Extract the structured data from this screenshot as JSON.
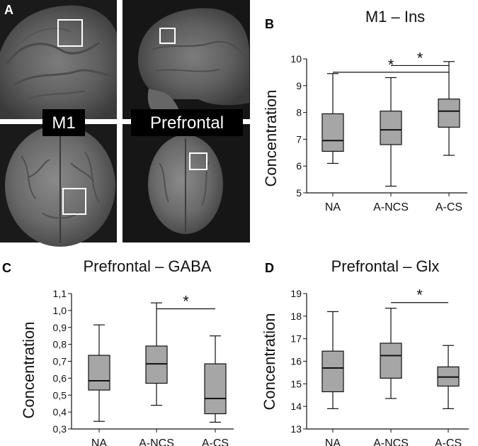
{
  "panel_a": {
    "letter": "A",
    "m1_label": "M1",
    "prefrontal_label": "Prefrontal"
  },
  "chart_data": [
    {
      "type": "boxplot",
      "panel_letter": "B",
      "title": "M1 – Ins",
      "xlabel": "",
      "ylabel": "Concentration",
      "categories": [
        "NA",
        "A-NCS",
        "A-CS"
      ],
      "ylim": [
        5,
        10
      ],
      "yticks": [
        "5",
        "6",
        "7",
        "8",
        "9",
        "10"
      ],
      "yticks_values": [
        5,
        6,
        7,
        8,
        9,
        10
      ],
      "boxes": [
        {
          "name": "NA",
          "whisker_low": 6.1,
          "q1": 6.55,
          "median": 6.95,
          "q3": 7.95,
          "whisker_high": 9.45
        },
        {
          "name": "A-NCS",
          "whisker_low": 5.25,
          "q1": 6.8,
          "median": 7.35,
          "q3": 8.05,
          "whisker_high": 9.3
        },
        {
          "name": "A-CS",
          "whisker_low": 6.4,
          "q1": 7.45,
          "median": 8.05,
          "q3": 8.5,
          "whisker_high": 9.9
        }
      ],
      "box_color": "#a6a6a6",
      "significance": [
        {
          "from": "A-NCS",
          "to": "A-CS",
          "label": "*",
          "level": 9.75
        },
        {
          "from": "NA",
          "to": "A-CS",
          "label": "*",
          "level": 9.5
        }
      ]
    },
    {
      "type": "boxplot",
      "panel_letter": "C",
      "title": "Prefrontal – GABA",
      "xlabel": "",
      "ylabel": "Concentration",
      "categories": [
        "NA",
        "A-NCS",
        "A-CS"
      ],
      "ylim": [
        0.3,
        1.1
      ],
      "yticks": [
        "0,3",
        "0,4",
        "0,5",
        "0,6",
        "0,7",
        "0,8",
        "0,9",
        "1,0",
        "1,1"
      ],
      "yticks_values": [
        0.3,
        0.4,
        0.5,
        0.6,
        0.7,
        0.8,
        0.9,
        1.0,
        1.1
      ],
      "boxes": [
        {
          "name": "NA",
          "whisker_low": 0.345,
          "q1": 0.53,
          "median": 0.585,
          "q3": 0.735,
          "whisker_high": 0.915
        },
        {
          "name": "A-NCS",
          "whisker_low": 0.44,
          "q1": 0.57,
          "median": 0.685,
          "q3": 0.79,
          "whisker_high": 1.045
        },
        {
          "name": "A-CS",
          "whisker_low": 0.34,
          "q1": 0.39,
          "median": 0.48,
          "q3": 0.685,
          "whisker_high": 0.85
        }
      ],
      "box_color": "#a6a6a6",
      "significance": [
        {
          "from": "A-NCS",
          "to": "A-CS",
          "label": "*",
          "level": 1.01
        }
      ]
    },
    {
      "type": "boxplot",
      "panel_letter": "D",
      "title": "Prefrontal – Glx",
      "xlabel": "",
      "ylabel": "Concentration",
      "categories": [
        "NA",
        "A-NCS",
        "A-CS"
      ],
      "ylim": [
        13,
        19
      ],
      "yticks": [
        "13",
        "14",
        "15",
        "16",
        "17",
        "18",
        "19"
      ],
      "yticks_values": [
        13,
        14,
        15,
        16,
        17,
        18,
        19
      ],
      "boxes": [
        {
          "name": "NA",
          "whisker_low": 13.9,
          "q1": 14.65,
          "median": 15.7,
          "q3": 16.45,
          "whisker_high": 18.2
        },
        {
          "name": "A-NCS",
          "whisker_low": 14.35,
          "q1": 15.25,
          "median": 16.25,
          "q3": 16.8,
          "whisker_high": 18.35
        },
        {
          "name": "A-CS",
          "whisker_low": 13.9,
          "q1": 14.9,
          "median": 15.3,
          "q3": 15.75,
          "whisker_high": 16.7
        }
      ],
      "box_color": "#a6a6a6",
      "significance": [
        {
          "from": "A-NCS",
          "to": "A-CS",
          "label": "*",
          "level": 18.6
        }
      ]
    }
  ]
}
